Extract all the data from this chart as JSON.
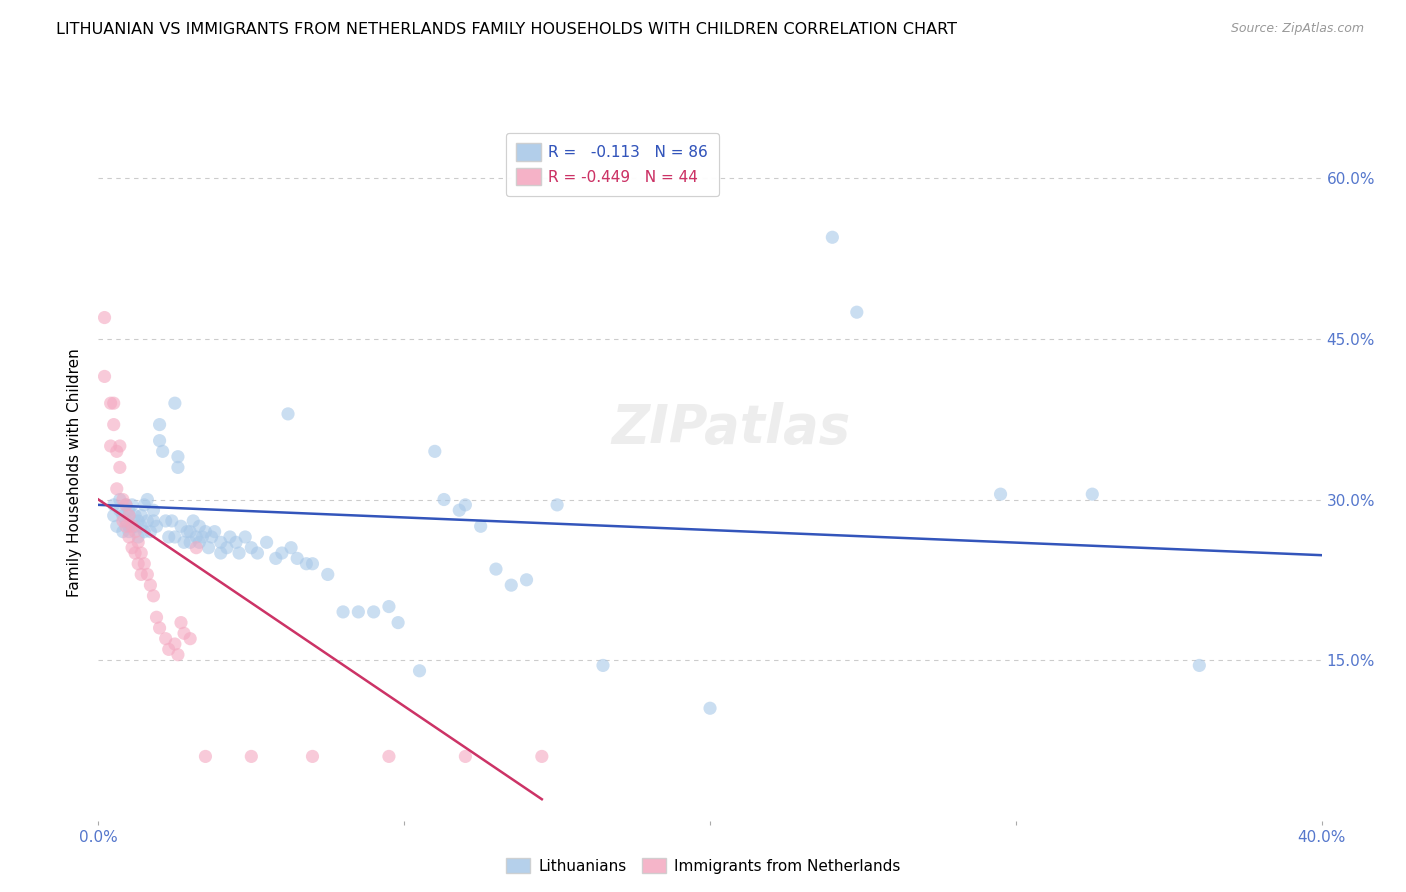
{
  "title": "LITHUANIAN VS IMMIGRANTS FROM NETHERLANDS FAMILY HOUSEHOLDS WITH CHILDREN CORRELATION CHART",
  "source": "Source: ZipAtlas.com",
  "ylabel": "Family Households with Children",
  "xlim": [
    0.0,
    0.4
  ],
  "ylim": [
    0.0,
    0.65
  ],
  "y_ticks": [
    0.0,
    0.15,
    0.3,
    0.45,
    0.6
  ],
  "y_tick_labels": [
    "",
    "15.0%",
    "30.0%",
    "45.0%",
    "60.0%"
  ],
  "x_ticks": [
    0.0,
    0.1,
    0.2,
    0.3,
    0.4
  ],
  "x_tick_labels": [
    "0.0%",
    "",
    "",
    "",
    "40.0%"
  ],
  "blue_scatter": [
    [
      0.005,
      0.295
    ],
    [
      0.005,
      0.285
    ],
    [
      0.006,
      0.275
    ],
    [
      0.007,
      0.29
    ],
    [
      0.007,
      0.3
    ],
    [
      0.008,
      0.285
    ],
    [
      0.008,
      0.27
    ],
    [
      0.009,
      0.28
    ],
    [
      0.009,
      0.295
    ],
    [
      0.01,
      0.285
    ],
    [
      0.01,
      0.275
    ],
    [
      0.01,
      0.29
    ],
    [
      0.01,
      0.27
    ],
    [
      0.011,
      0.295
    ],
    [
      0.012,
      0.285
    ],
    [
      0.012,
      0.275
    ],
    [
      0.013,
      0.28
    ],
    [
      0.013,
      0.265
    ],
    [
      0.014,
      0.285
    ],
    [
      0.014,
      0.275
    ],
    [
      0.015,
      0.295
    ],
    [
      0.015,
      0.27
    ],
    [
      0.016,
      0.3
    ],
    [
      0.016,
      0.28
    ],
    [
      0.017,
      0.27
    ],
    [
      0.018,
      0.29
    ],
    [
      0.018,
      0.28
    ],
    [
      0.019,
      0.275
    ],
    [
      0.02,
      0.37
    ],
    [
      0.02,
      0.355
    ],
    [
      0.021,
      0.345
    ],
    [
      0.022,
      0.28
    ],
    [
      0.023,
      0.265
    ],
    [
      0.024,
      0.28
    ],
    [
      0.025,
      0.39
    ],
    [
      0.025,
      0.265
    ],
    [
      0.026,
      0.34
    ],
    [
      0.026,
      0.33
    ],
    [
      0.027,
      0.275
    ],
    [
      0.028,
      0.26
    ],
    [
      0.029,
      0.27
    ],
    [
      0.03,
      0.27
    ],
    [
      0.03,
      0.26
    ],
    [
      0.031,
      0.28
    ],
    [
      0.032,
      0.265
    ],
    [
      0.033,
      0.275
    ],
    [
      0.033,
      0.26
    ],
    [
      0.034,
      0.265
    ],
    [
      0.035,
      0.27
    ],
    [
      0.036,
      0.255
    ],
    [
      0.037,
      0.265
    ],
    [
      0.038,
      0.27
    ],
    [
      0.04,
      0.26
    ],
    [
      0.04,
      0.25
    ],
    [
      0.042,
      0.255
    ],
    [
      0.043,
      0.265
    ],
    [
      0.045,
      0.26
    ],
    [
      0.046,
      0.25
    ],
    [
      0.048,
      0.265
    ],
    [
      0.05,
      0.255
    ],
    [
      0.052,
      0.25
    ],
    [
      0.055,
      0.26
    ],
    [
      0.058,
      0.245
    ],
    [
      0.06,
      0.25
    ],
    [
      0.062,
      0.38
    ],
    [
      0.063,
      0.255
    ],
    [
      0.065,
      0.245
    ],
    [
      0.068,
      0.24
    ],
    [
      0.07,
      0.24
    ],
    [
      0.075,
      0.23
    ],
    [
      0.08,
      0.195
    ],
    [
      0.085,
      0.195
    ],
    [
      0.09,
      0.195
    ],
    [
      0.095,
      0.2
    ],
    [
      0.098,
      0.185
    ],
    [
      0.105,
      0.14
    ],
    [
      0.11,
      0.345
    ],
    [
      0.113,
      0.3
    ],
    [
      0.118,
      0.29
    ],
    [
      0.12,
      0.295
    ],
    [
      0.125,
      0.275
    ],
    [
      0.13,
      0.235
    ],
    [
      0.135,
      0.22
    ],
    [
      0.14,
      0.225
    ],
    [
      0.15,
      0.295
    ],
    [
      0.165,
      0.145
    ],
    [
      0.2,
      0.105
    ],
    [
      0.24,
      0.545
    ],
    [
      0.248,
      0.475
    ],
    [
      0.295,
      0.305
    ],
    [
      0.325,
      0.305
    ],
    [
      0.36,
      0.145
    ]
  ],
  "pink_scatter": [
    [
      0.002,
      0.47
    ],
    [
      0.002,
      0.415
    ],
    [
      0.004,
      0.39
    ],
    [
      0.004,
      0.35
    ],
    [
      0.005,
      0.39
    ],
    [
      0.005,
      0.37
    ],
    [
      0.006,
      0.345
    ],
    [
      0.006,
      0.31
    ],
    [
      0.007,
      0.35
    ],
    [
      0.007,
      0.33
    ],
    [
      0.008,
      0.3
    ],
    [
      0.008,
      0.28
    ],
    [
      0.009,
      0.295
    ],
    [
      0.009,
      0.275
    ],
    [
      0.01,
      0.285
    ],
    [
      0.01,
      0.265
    ],
    [
      0.011,
      0.275
    ],
    [
      0.011,
      0.255
    ],
    [
      0.012,
      0.27
    ],
    [
      0.012,
      0.25
    ],
    [
      0.013,
      0.26
    ],
    [
      0.013,
      0.24
    ],
    [
      0.014,
      0.25
    ],
    [
      0.014,
      0.23
    ],
    [
      0.015,
      0.24
    ],
    [
      0.016,
      0.23
    ],
    [
      0.017,
      0.22
    ],
    [
      0.018,
      0.21
    ],
    [
      0.019,
      0.19
    ],
    [
      0.02,
      0.18
    ],
    [
      0.022,
      0.17
    ],
    [
      0.023,
      0.16
    ],
    [
      0.025,
      0.165
    ],
    [
      0.026,
      0.155
    ],
    [
      0.027,
      0.185
    ],
    [
      0.028,
      0.175
    ],
    [
      0.03,
      0.17
    ],
    [
      0.032,
      0.255
    ],
    [
      0.035,
      0.06
    ],
    [
      0.05,
      0.06
    ],
    [
      0.07,
      0.06
    ],
    [
      0.095,
      0.06
    ],
    [
      0.12,
      0.06
    ],
    [
      0.145,
      0.06
    ]
  ],
  "blue_line_x": [
    0.0,
    0.4
  ],
  "blue_line_y": [
    0.295,
    0.248
  ],
  "pink_line_x": [
    0.0,
    0.145
  ],
  "pink_line_y": [
    0.3,
    0.02
  ],
  "blue_color": "#a8c8e8",
  "pink_color": "#f4a8c0",
  "blue_line_color": "#3355bb",
  "pink_line_color": "#cc3366",
  "marker_size": 90,
  "alpha": 0.6,
  "background_color": "#ffffff",
  "grid_color": "#cccccc",
  "tick_color": "#5577cc",
  "title_fontsize": 11.5,
  "axis_label_fontsize": 11,
  "tick_fontsize": 11
}
